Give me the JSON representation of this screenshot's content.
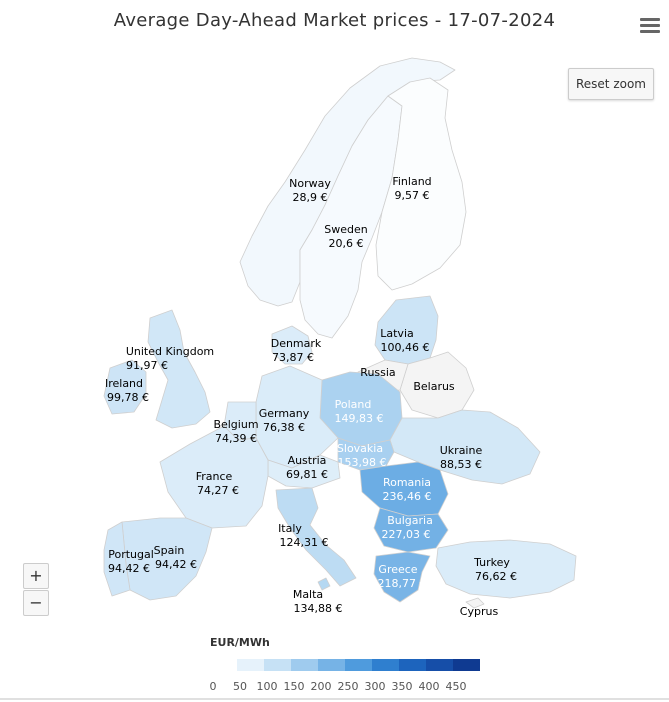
{
  "title": "Average Day-Ahead Market prices - 17-07-2024",
  "toolbar": {
    "reset_zoom_label": "Reset zoom",
    "zoom_in_label": "+",
    "zoom_out_label": "−",
    "menu_icon": "hamburger-menu-icon"
  },
  "legend": {
    "title": "EUR/MWh",
    "ticks": [
      "0",
      "50",
      "100",
      "150",
      "200",
      "250",
      "300",
      "350",
      "400",
      "450"
    ],
    "min": 0,
    "max": 500,
    "colors": [
      "#ffffff",
      "#e6f2fb",
      "#c6e1f5",
      "#9fcbee",
      "#76b3e6",
      "#4f9bdd",
      "#2f7fcf",
      "#1d64bd",
      "#164ea8",
      "#0f3a91"
    ]
  },
  "countries": [
    {
      "id": "norway",
      "name": "Norway",
      "value": 28.9,
      "price": "28,9 €"
    },
    {
      "id": "finland",
      "name": "Finland",
      "value": 9.57,
      "price": "9,57 €"
    },
    {
      "id": "sweden",
      "name": "Sweden",
      "value": 20.6,
      "price": "20,6 €"
    },
    {
      "id": "denmark",
      "name": "Denmark",
      "value": 73.87,
      "price": "73,87 €"
    },
    {
      "id": "latvia",
      "name": "Latvia",
      "value": 100.46,
      "price": "100,46 €"
    },
    {
      "id": "united-kingdom",
      "name": "United Kingdom",
      "value": 91.97,
      "price": "91,97 €"
    },
    {
      "id": "ireland",
      "name": "Ireland",
      "value": 99.78,
      "price": "99,78 €"
    },
    {
      "id": "russia",
      "name": "Russia",
      "value": null,
      "price": ""
    },
    {
      "id": "belarus",
      "name": "Belarus",
      "value": null,
      "price": ""
    },
    {
      "id": "poland",
      "name": "Poland",
      "value": 149.83,
      "price": "149,83 €"
    },
    {
      "id": "germany",
      "name": "Germany",
      "value": 76.38,
      "price": "76,38 €"
    },
    {
      "id": "belgium",
      "name": "Belgium",
      "value": 74.39,
      "price": "74,39 €"
    },
    {
      "id": "slovakia",
      "name": "Slovakia",
      "value": 153.98,
      "price": "153,98 €"
    },
    {
      "id": "ukraine",
      "name": "Ukraine",
      "value": 88.53,
      "price": "88,53 €"
    },
    {
      "id": "austria",
      "name": "Austria",
      "value": 69.81,
      "price": "69,81 €"
    },
    {
      "id": "france",
      "name": "France",
      "value": 74.27,
      "price": "74,27 €"
    },
    {
      "id": "romania",
      "name": "Romania",
      "value": 236.46,
      "price": "236,46 €"
    },
    {
      "id": "bulgaria",
      "name": "Bulgaria",
      "value": 227.03,
      "price": "227,03 €"
    },
    {
      "id": "italy",
      "name": "Italy",
      "value": 124.31,
      "price": "124,31 €"
    },
    {
      "id": "portugal",
      "name": "Portugal",
      "value": 94.42,
      "price": "94,42 €"
    },
    {
      "id": "spain",
      "name": "Spain",
      "value": 94.42,
      "price": "94,42 €"
    },
    {
      "id": "turkey",
      "name": "Turkey",
      "value": 76.62,
      "price": "76,62 €"
    },
    {
      "id": "greece",
      "name": "Greece",
      "value": 218.77,
      "price": "218,77 €"
    },
    {
      "id": "malta",
      "name": "Malta",
      "value": 134.88,
      "price": "134,88 €"
    },
    {
      "id": "cyprus",
      "name": "Cyprus",
      "value": null,
      "price": ""
    }
  ]
}
